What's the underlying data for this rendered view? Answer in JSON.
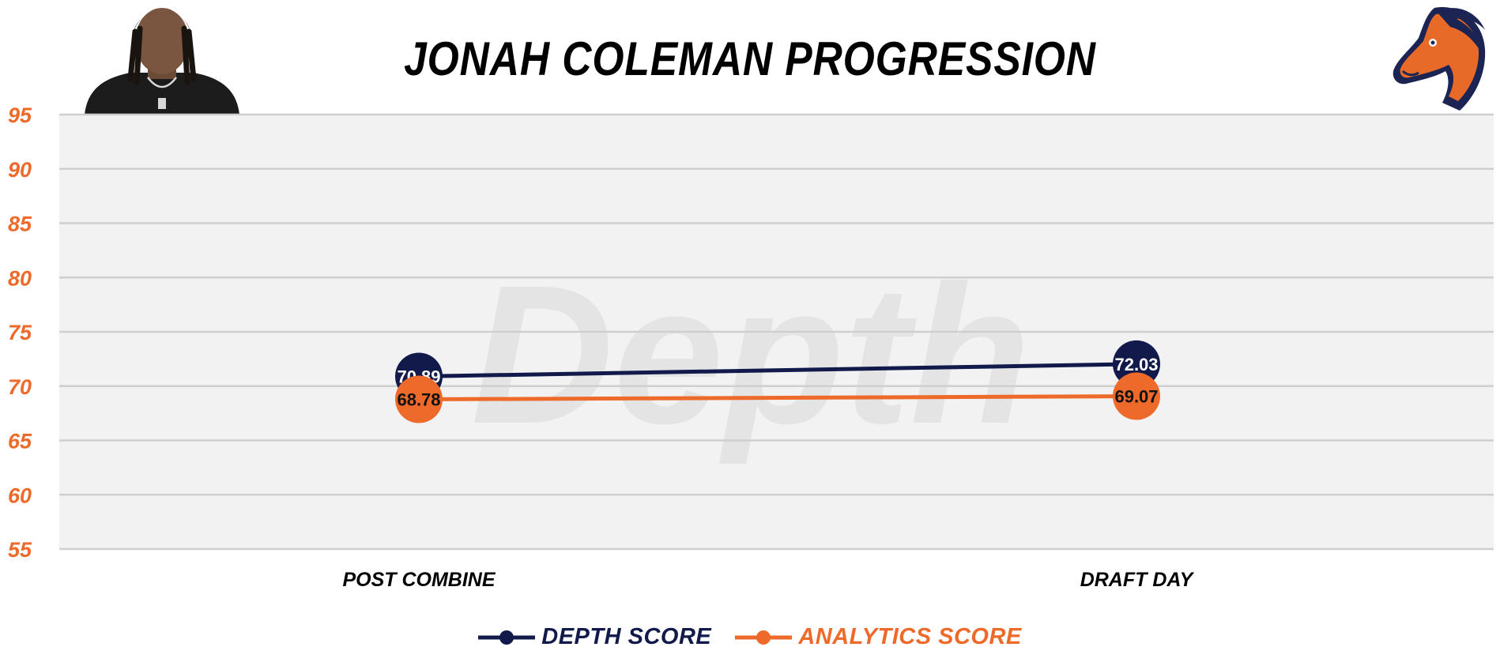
{
  "colors": {
    "depth": "#111a4a",
    "analytics": "#ed6a2a",
    "grid": "#cfcfcf",
    "plot_bg": "#f2f2f2",
    "watermark": "#e4e4e4"
  },
  "watermark": {
    "text": "Depth"
  },
  "images": {
    "player_photo": "player-headshot",
    "team_logo": "horse-head-logo"
  },
  "chart_data": {
    "type": "line",
    "title": "JONAH COLEMAN PROGRESSION",
    "categories": [
      "POST COMBINE",
      "DRAFT DAY"
    ],
    "series": [
      {
        "name": "DEPTH SCORE",
        "values": [
          70.89,
          72.03
        ],
        "color": "#111a4a",
        "label_color": "#ffffff"
      },
      {
        "name": "ANALYTICS SCORE",
        "values": [
          68.78,
          69.07
        ],
        "color": "#ed6a2a",
        "label_color": "#111111"
      }
    ],
    "ylim": [
      55,
      95
    ],
    "yticks": [
      95,
      90,
      85,
      80,
      75,
      70,
      65,
      60,
      55
    ],
    "grid": true,
    "legend": "bottom-center",
    "xlabel": "",
    "ylabel": ""
  }
}
